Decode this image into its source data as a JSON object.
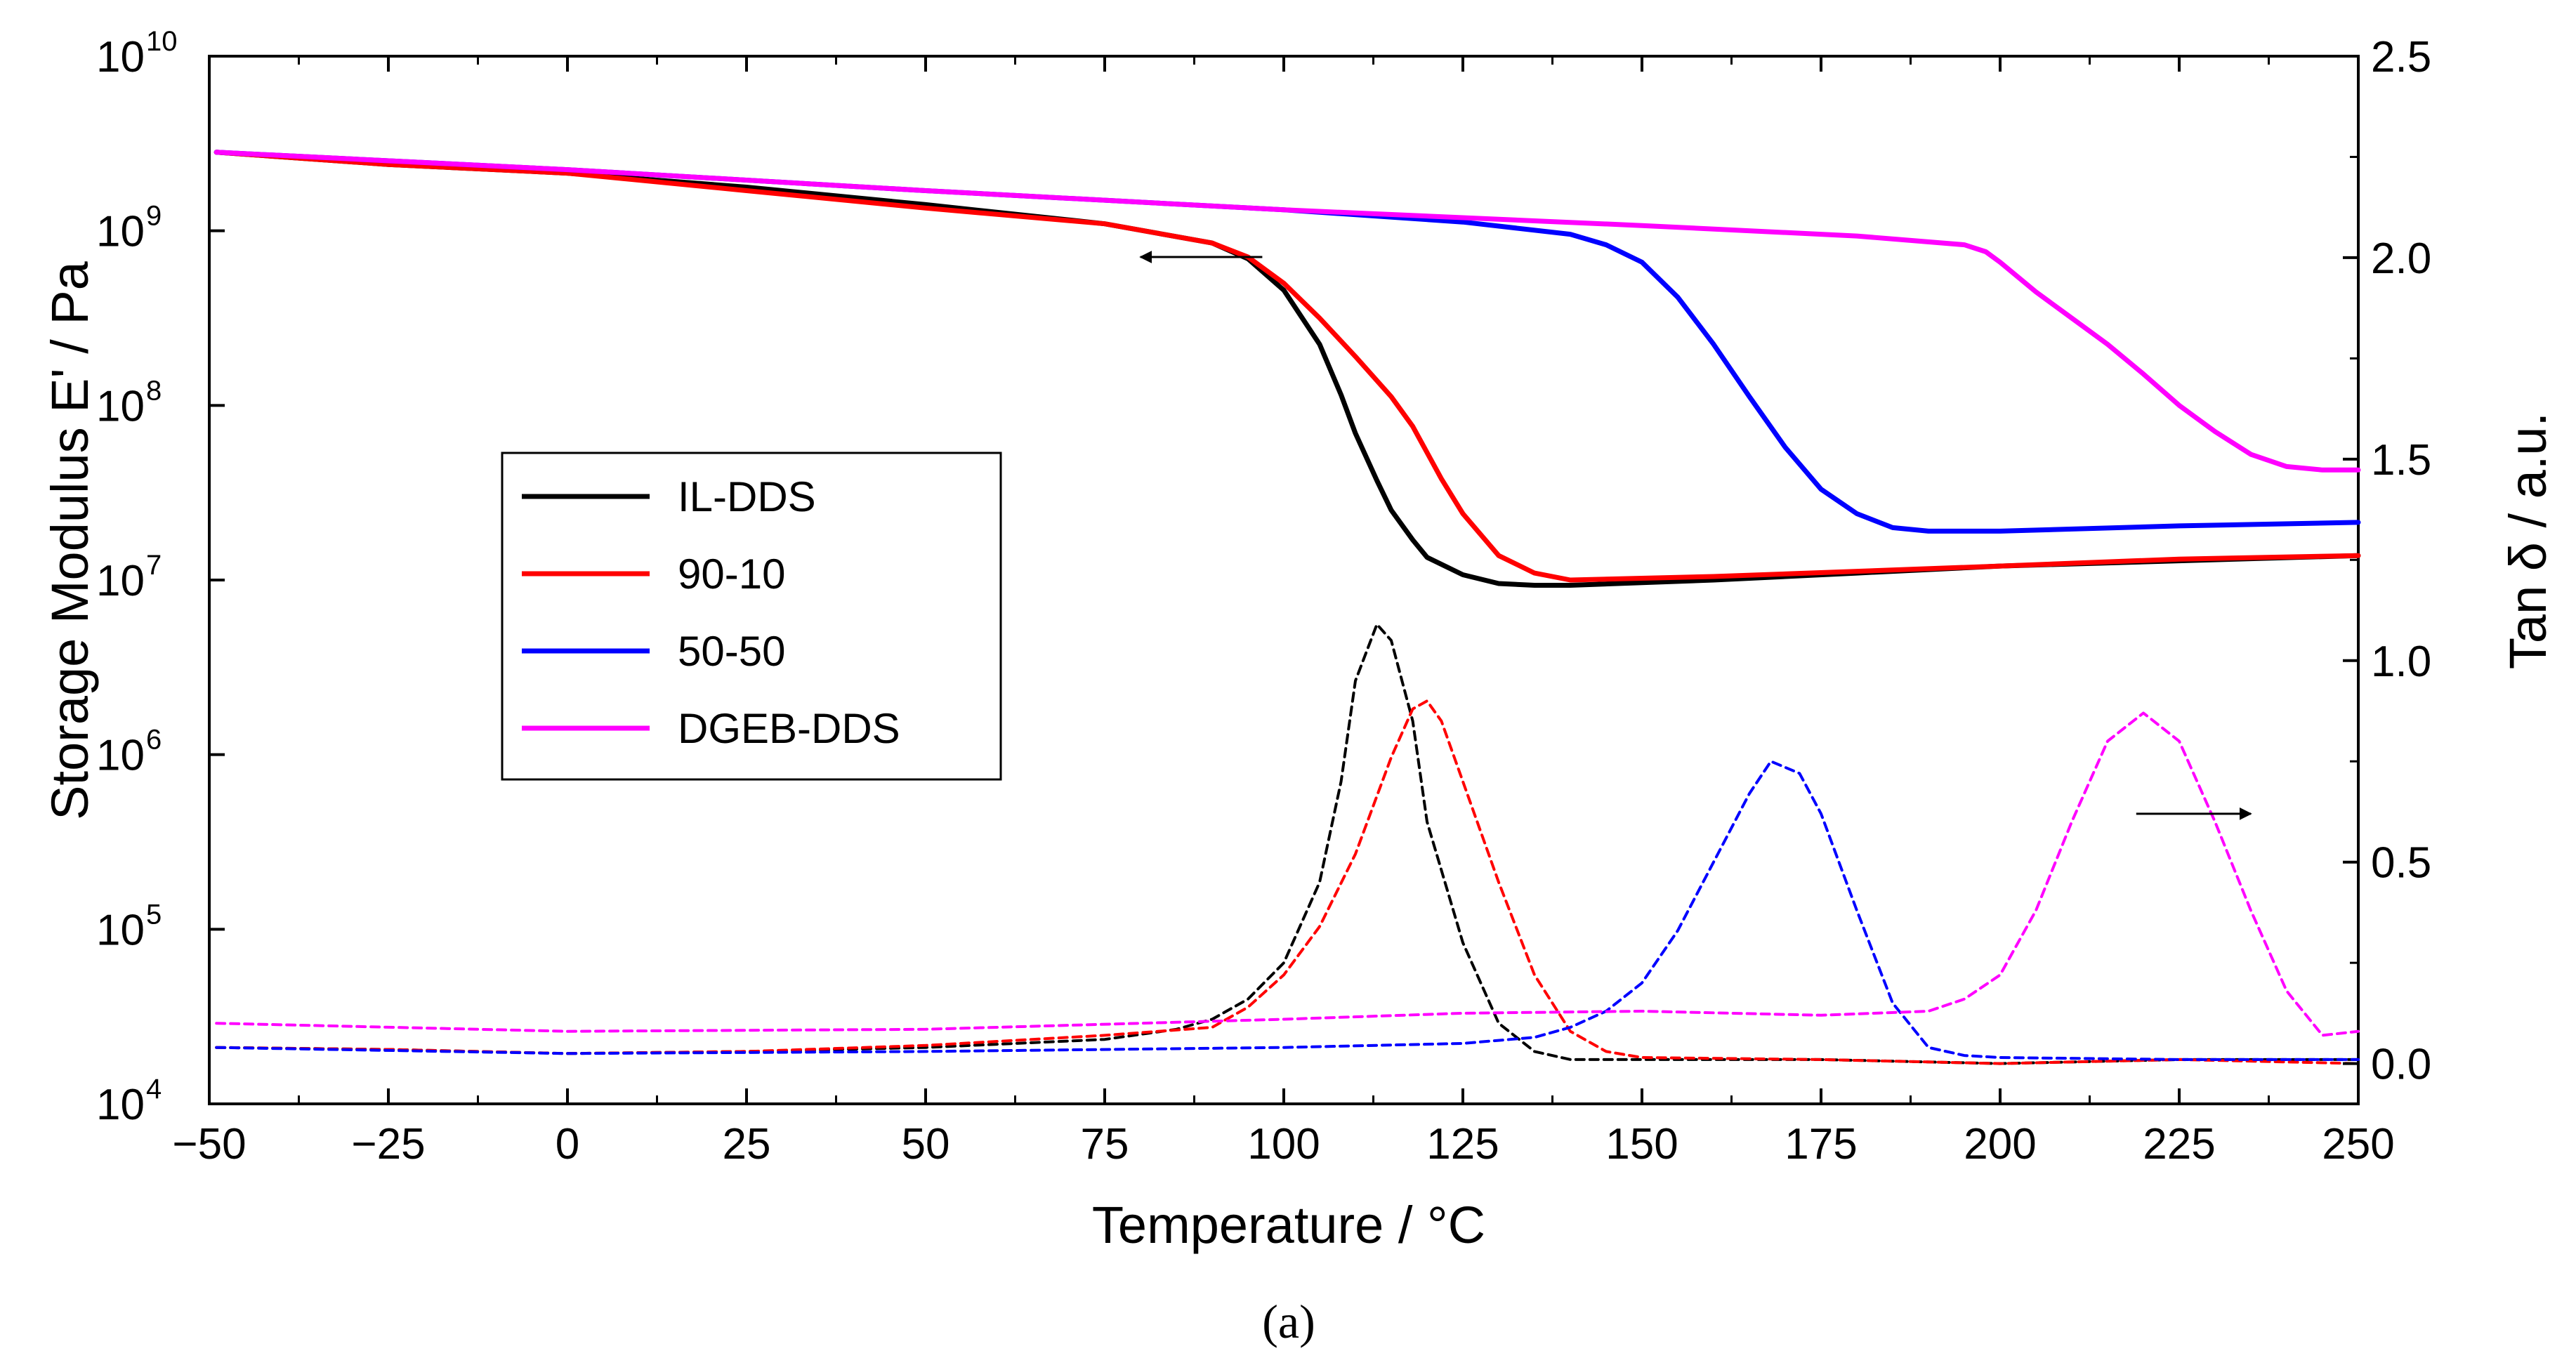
{
  "chart_data": {
    "type": "line",
    "title": "",
    "caption": "(a)",
    "xlabel": "Temperature / °C",
    "ylabel_left": "Storage Modulus E' / Pa",
    "ylabel_right": "Tan δ / a.u.",
    "xlim": [
      -50,
      250
    ],
    "x_ticks": [
      -50,
      -25,
      0,
      25,
      50,
      75,
      100,
      125,
      150,
      175,
      200,
      225,
      250
    ],
    "x_tick_labels": [
      "−50",
      "−25",
      "0",
      "25",
      "50",
      "75",
      "100",
      "125",
      "150",
      "175",
      "200",
      "225",
      "250"
    ],
    "y_left_scale": "log",
    "y_left_exponent_range": [
      4,
      10
    ],
    "y_left_tick_exponents": [
      4,
      5,
      6,
      7,
      8,
      9,
      10
    ],
    "y_left_tick_base": "10",
    "y_right_lim": [
      -0.1,
      2.5
    ],
    "y_right_ticks": [
      0.0,
      0.5,
      1.0,
      1.5,
      2.0,
      2.5
    ],
    "y_right_tick_labels": [
      "0.0",
      "0.5",
      "1.0",
      "1.5",
      "2.0",
      "2.5"
    ],
    "legend_position": "middle-left",
    "arrows": [
      {
        "points_to": "left axis",
        "x_from": 97,
        "x_to": 80,
        "value_log10": 8.85
      },
      {
        "points_to": "right axis",
        "x_from": 219,
        "x_to": 235,
        "value": 0.62
      }
    ],
    "series": [
      {
        "name": "IL-DDS",
        "color": "#000000",
        "axis": "left",
        "x": [
          -49,
          -25,
          0,
          25,
          50,
          75,
          90,
          95,
          100,
          105,
          108,
          110,
          113,
          115,
          118,
          120,
          125,
          130,
          135,
          140,
          160,
          180,
          200,
          225,
          250
        ],
        "log10_y": [
          9.45,
          9.38,
          9.33,
          9.25,
          9.15,
          9.04,
          8.93,
          8.84,
          8.66,
          8.35,
          8.06,
          7.84,
          7.57,
          7.4,
          7.23,
          7.13,
          7.03,
          6.98,
          6.97,
          6.97,
          7.0,
          7.04,
          7.08,
          7.11,
          7.14
        ]
      },
      {
        "name": "90-10",
        "color": "#ff0000",
        "axis": "left",
        "x": [
          -49,
          -25,
          0,
          25,
          50,
          75,
          90,
          95,
          100,
          105,
          110,
          115,
          118,
          120,
          122,
          125,
          130,
          135,
          140,
          160,
          180,
          200,
          225,
          250
        ],
        "log10_y": [
          9.45,
          9.38,
          9.33,
          9.23,
          9.13,
          9.04,
          8.93,
          8.85,
          8.7,
          8.5,
          8.28,
          8.05,
          7.88,
          7.73,
          7.58,
          7.38,
          7.14,
          7.04,
          7.0,
          7.02,
          7.05,
          7.08,
          7.12,
          7.14
        ]
      },
      {
        "name": "50-50",
        "color": "#0000ff",
        "axis": "left",
        "x": [
          -49,
          0,
          50,
          100,
          125,
          140,
          145,
          150,
          155,
          160,
          165,
          170,
          175,
          180,
          185,
          190,
          200,
          225,
          250
        ],
        "log10_y": [
          9.45,
          9.35,
          9.23,
          9.12,
          9.05,
          8.98,
          8.92,
          8.82,
          8.62,
          8.35,
          8.05,
          7.76,
          7.52,
          7.38,
          7.3,
          7.28,
          7.28,
          7.31,
          7.33
        ]
      },
      {
        "name": "DGEB-DDS",
        "color": "#ff00ff",
        "axis": "left",
        "x": [
          -49,
          0,
          50,
          100,
          150,
          180,
          195,
          198,
          200,
          205,
          210,
          215,
          220,
          225,
          230,
          235,
          240,
          245,
          250
        ],
        "log10_y": [
          9.45,
          9.35,
          9.23,
          9.12,
          9.03,
          8.97,
          8.92,
          8.88,
          8.82,
          8.65,
          8.5,
          8.35,
          8.18,
          8.0,
          7.85,
          7.72,
          7.65,
          7.63,
          7.63
        ]
      },
      {
        "name": "IL-DDS tan δ",
        "color": "#000000",
        "axis": "right",
        "x": [
          -49,
          -25,
          0,
          25,
          50,
          75,
          85,
          90,
          95,
          100,
          105,
          108,
          110,
          113,
          115,
          118,
          120,
          125,
          130,
          135,
          140,
          150,
          175,
          200,
          225,
          250
        ],
        "y": [
          0.04,
          0.035,
          0.025,
          0.03,
          0.04,
          0.06,
          0.085,
          0.11,
          0.16,
          0.25,
          0.45,
          0.7,
          0.95,
          1.09,
          1.05,
          0.85,
          0.6,
          0.3,
          0.1,
          0.03,
          0.01,
          0.01,
          0.01,
          0.0,
          0.01,
          0.01
        ]
      },
      {
        "name": "90-10 tan δ",
        "color": "#ff0000",
        "axis": "right",
        "x": [
          -49,
          -25,
          0,
          25,
          50,
          75,
          90,
          95,
          100,
          105,
          110,
          115,
          118,
          120,
          122,
          125,
          130,
          135,
          140,
          145,
          150,
          175,
          200,
          225,
          250
        ],
        "y": [
          0.04,
          0.035,
          0.025,
          0.03,
          0.045,
          0.07,
          0.09,
          0.14,
          0.22,
          0.34,
          0.52,
          0.76,
          0.88,
          0.9,
          0.85,
          0.7,
          0.45,
          0.22,
          0.08,
          0.03,
          0.015,
          0.01,
          0.0,
          0.01,
          0.0
        ]
      },
      {
        "name": "50-50 tan δ",
        "color": "#0000ff",
        "axis": "right",
        "x": [
          -49,
          0,
          50,
          100,
          125,
          135,
          140,
          145,
          150,
          155,
          160,
          165,
          168,
          172,
          175,
          180,
          185,
          190,
          195,
          200,
          225,
          250
        ],
        "y": [
          0.04,
          0.025,
          0.03,
          0.04,
          0.05,
          0.065,
          0.09,
          0.13,
          0.2,
          0.33,
          0.5,
          0.67,
          0.75,
          0.72,
          0.62,
          0.38,
          0.15,
          0.04,
          0.02,
          0.015,
          0.01,
          0.01
        ]
      },
      {
        "name": "DGEB-DDS tan δ",
        "color": "#ff00ff",
        "axis": "right",
        "x": [
          -49,
          0,
          50,
          100,
          125,
          150,
          175,
          190,
          195,
          200,
          205,
          210,
          215,
          220,
          225,
          230,
          235,
          240,
          245,
          250
        ],
        "y": [
          0.1,
          0.08,
          0.085,
          0.11,
          0.125,
          0.13,
          0.12,
          0.13,
          0.16,
          0.22,
          0.38,
          0.6,
          0.8,
          0.87,
          0.8,
          0.6,
          0.38,
          0.18,
          0.07,
          0.08
        ]
      }
    ]
  }
}
